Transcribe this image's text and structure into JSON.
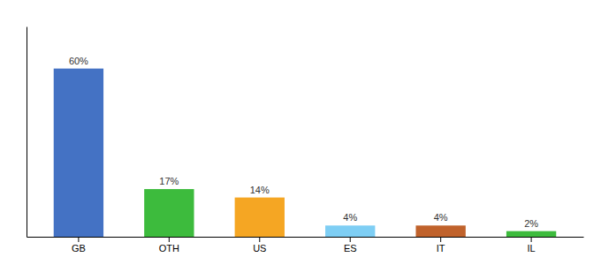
{
  "chart_data": {
    "type": "bar",
    "categories": [
      "GB",
      "OTH",
      "US",
      "ES",
      "IT",
      "IL"
    ],
    "values": [
      60,
      17,
      14,
      4,
      4,
      2
    ],
    "value_labels": [
      "60%",
      "17%",
      "14%",
      "4%",
      "4%",
      "2%"
    ],
    "colors": [
      "#4472c4",
      "#3dbb3d",
      "#f5a623",
      "#7ecef4",
      "#c0622b",
      "#3dbb3d"
    ],
    "ylim": [
      0,
      75
    ],
    "data_labels": true,
    "tick_labels": "x",
    "grid": false
  }
}
